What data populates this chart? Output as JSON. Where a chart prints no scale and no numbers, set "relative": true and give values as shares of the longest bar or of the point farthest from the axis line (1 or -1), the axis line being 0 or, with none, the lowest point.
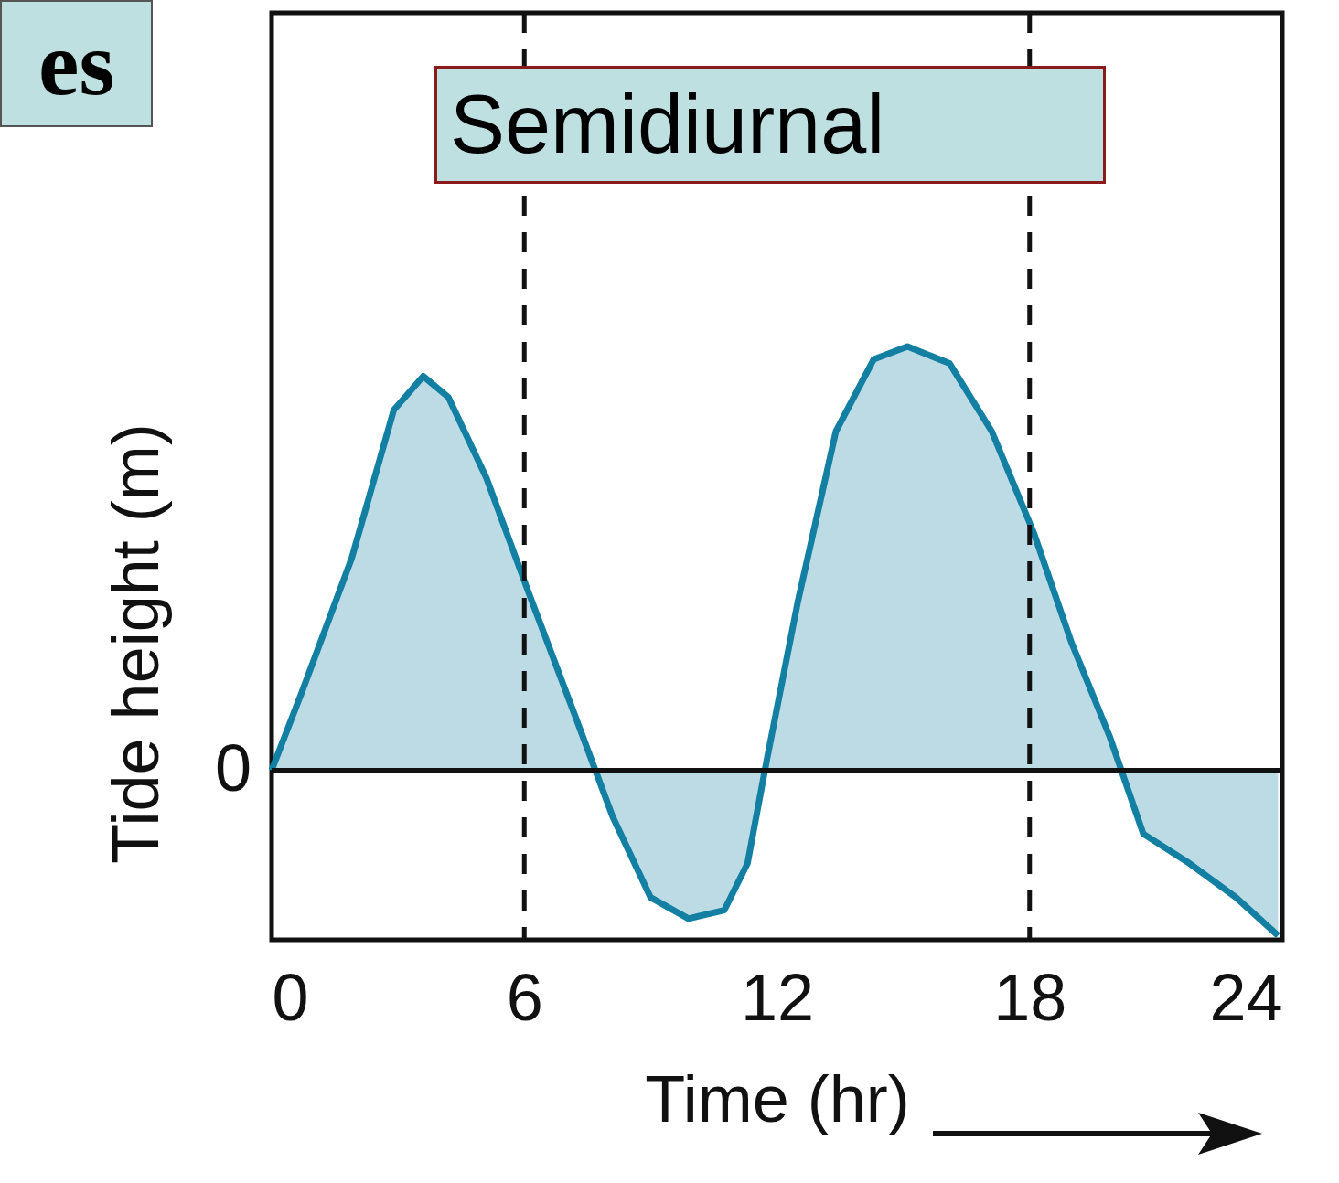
{
  "chart_data": {
    "type": "area",
    "title": "es",
    "annotations": [
      "Semidiurnal"
    ],
    "xlabel": "Time (hr)",
    "ylabel": "Tide height (m)",
    "relative": true,
    "xlim": [
      0,
      24
    ],
    "xticks": [
      0,
      6,
      12,
      18,
      24
    ],
    "grid": false,
    "x": [
      0,
      0.7,
      1.9,
      2.9,
      3.6,
      4.2,
      5.1,
      6.1,
      7.2,
      8.1,
      9.0,
      9.9,
      10.75,
      11.3,
      11.75,
      12.5,
      13.4,
      14.3,
      15.1,
      16.1,
      17.1,
      18.1,
      19.0,
      19.9,
      20.7,
      21.8,
      22.9,
      23.9
    ],
    "series": [
      {
        "color": "#127fa3",
        "values": [
          0,
          0.18,
          0.5,
          0.85,
          0.93,
          0.88,
          0.69,
          0.42,
          0.13,
          -0.11,
          -0.3,
          -0.35,
          -0.33,
          -0.22,
          0.02,
          0.4,
          0.8,
          0.97,
          1.0,
          0.96,
          0.8,
          0.56,
          0.3,
          0.08,
          -0.15,
          -0.22,
          -0.3,
          -0.39
        ]
      }
    ],
    "ref_lines": [
      {
        "axis": "x",
        "value": 6,
        "line_style": "dashed",
        "color": "#111111"
      },
      {
        "axis": "x",
        "value": 18,
        "line_style": "dashed",
        "color": "#111111"
      },
      {
        "axis": "y",
        "value": 0,
        "label": "0",
        "line_style": "solid",
        "color": "#111111"
      }
    ]
  }
}
